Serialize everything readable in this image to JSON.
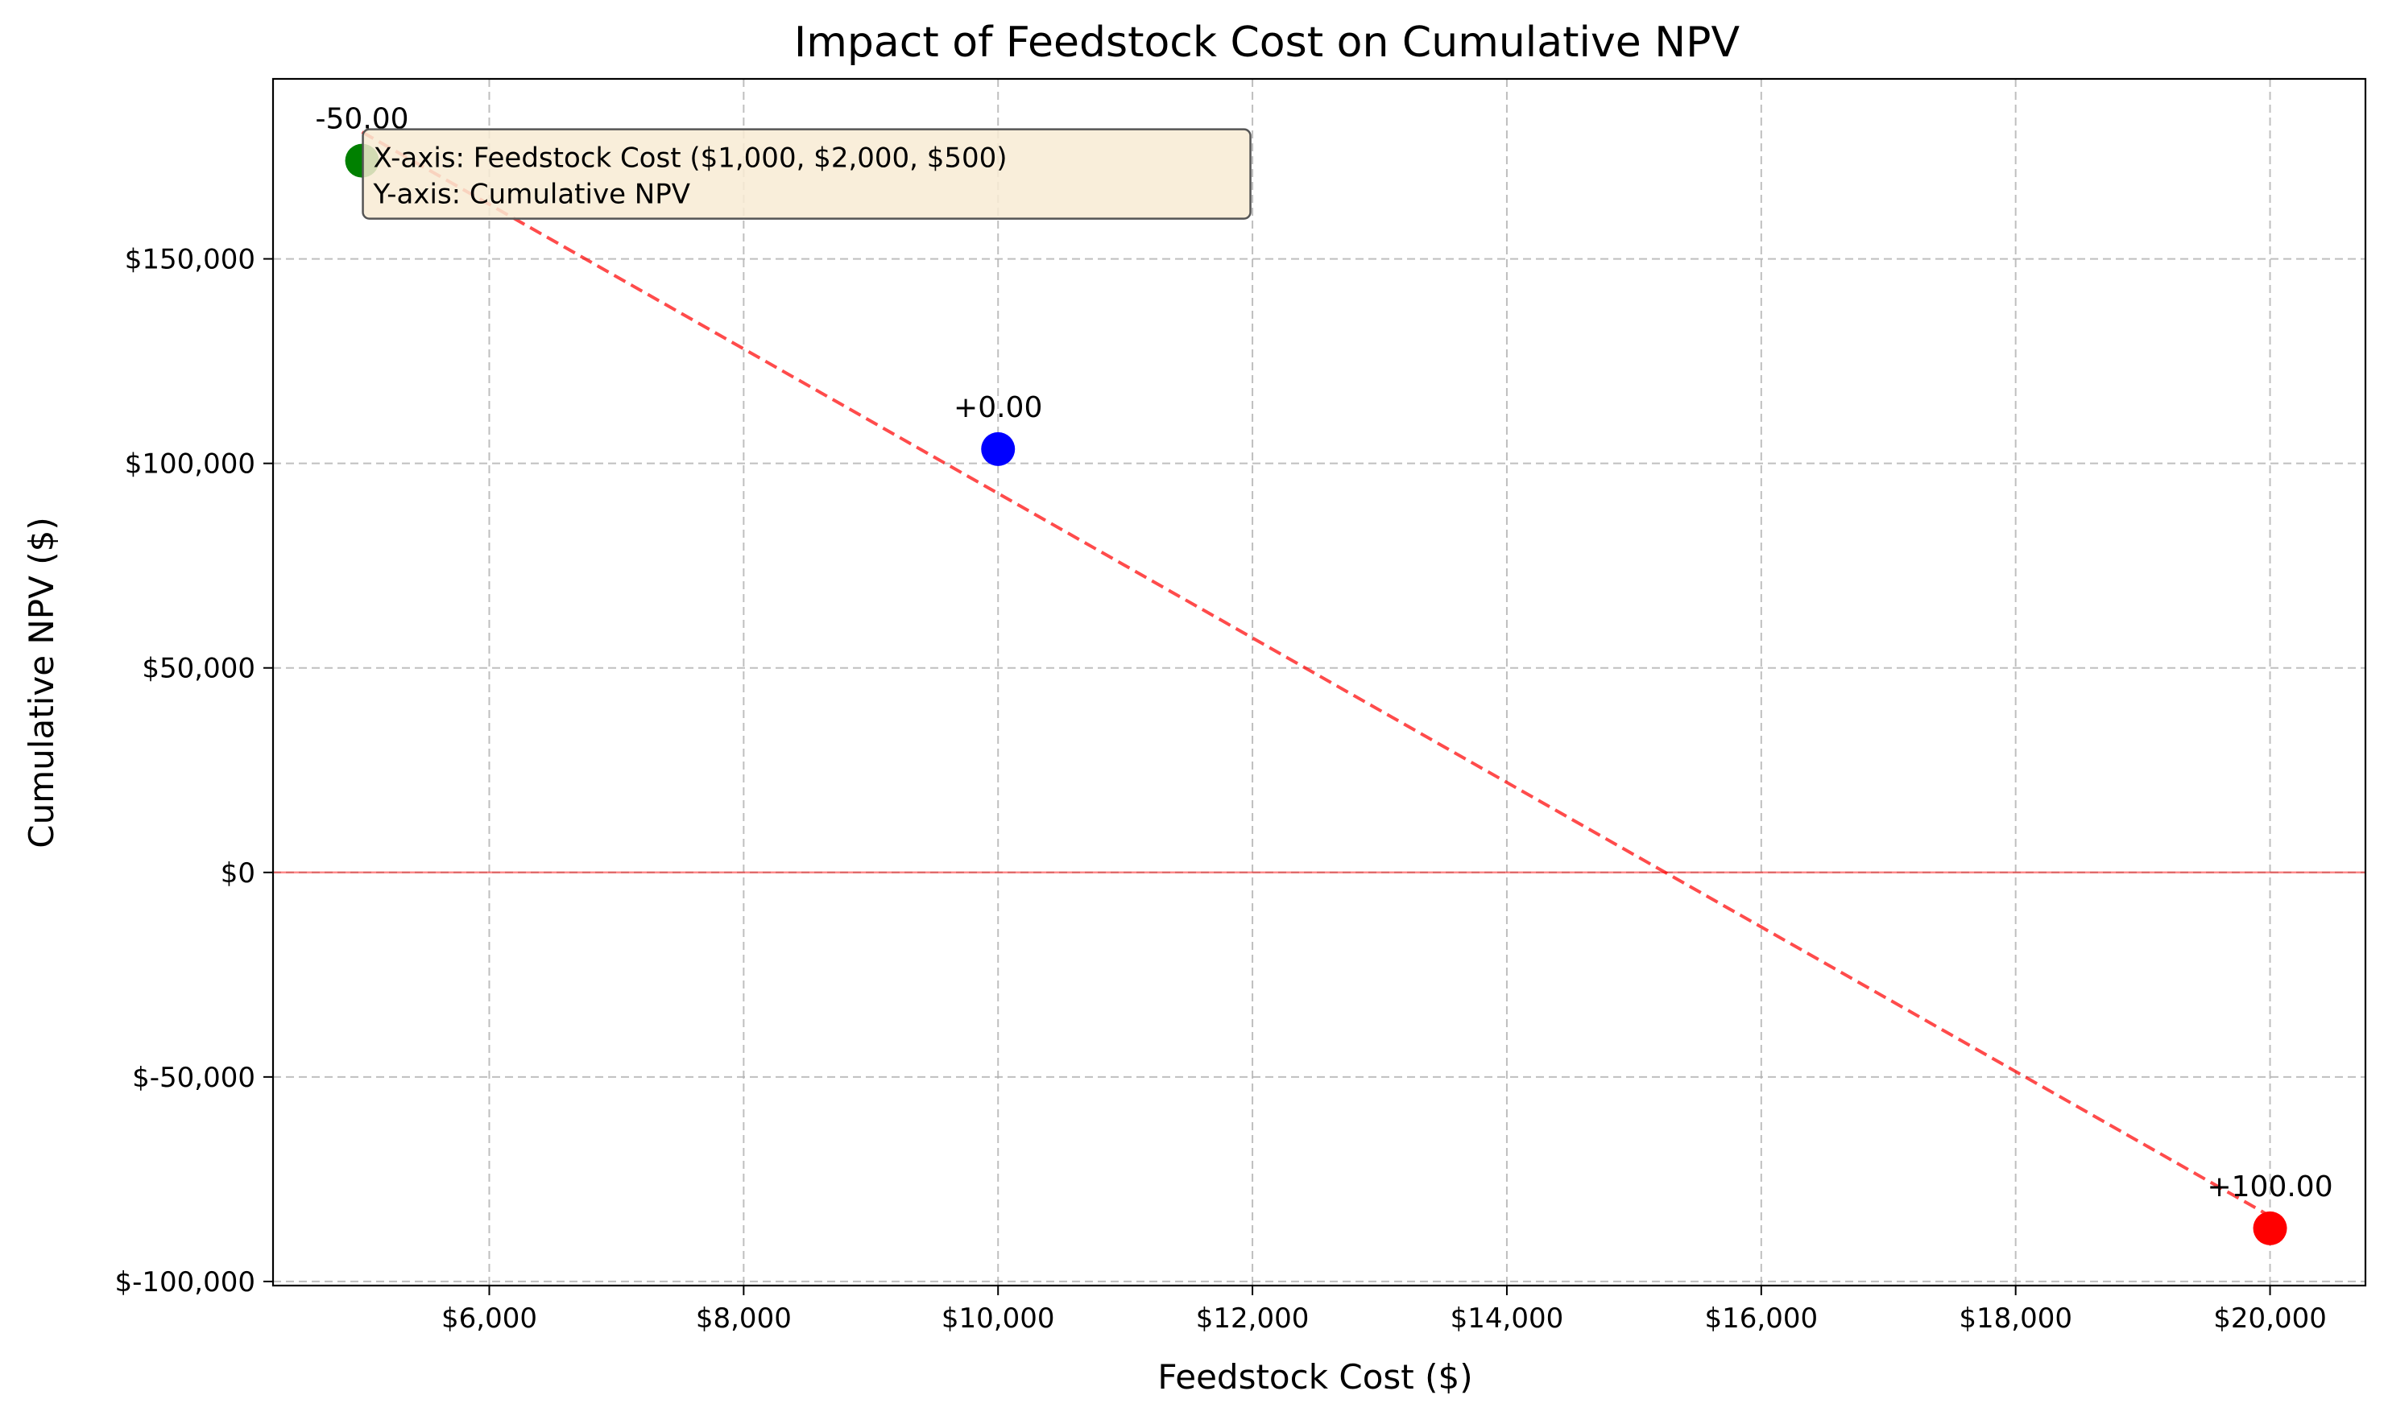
{
  "chart_data": {
    "type": "scatter",
    "title": "Impact of Feedstock Cost on Cumulative NPV",
    "xlabel": "Feedstock Cost ($)",
    "ylabel": "Cumulative NPV ($)",
    "xlim": [
      4300,
      20750
    ],
    "ylim": [
      -101000,
      194000
    ],
    "x_ticks": [
      6000,
      8000,
      10000,
      12000,
      14000,
      16000,
      18000,
      20000
    ],
    "x_tick_labels": [
      "$6,000",
      "$8,000",
      "$10,000",
      "$12,000",
      "$14,000",
      "$16,000",
      "$18,000",
      "$20,000"
    ],
    "y_ticks": [
      -100000,
      -50000,
      0,
      50000,
      100000,
      150000
    ],
    "y_tick_labels": [
      "$-100,000",
      "$-50,000",
      "$0",
      "$50,000",
      "$100,000",
      "$150,000"
    ],
    "grid": true,
    "points": [
      {
        "x": 5000,
        "y": 174000,
        "label": "-50.00",
        "color": "#008000"
      },
      {
        "x": 10000,
        "y": 103500,
        "label": "+0.00",
        "color": "#0000ff"
      },
      {
        "x": 20000,
        "y": -87000,
        "label": "+100.00",
        "color": "#ff0000"
      }
    ],
    "trend_line": {
      "x": [
        5000,
        20000
      ],
      "y": [
        181000,
        -84000
      ],
      "color": "#ff0000",
      "style": "dashed"
    },
    "reference_line": {
      "y": 0,
      "color": "#ff0000"
    },
    "annotation_box": {
      "lines": [
        "X-axis: Feedstock Cost ($1,000, $2,000, $500)",
        "Y-axis: Cumulative NPV"
      ],
      "background": "#f8ebd3"
    }
  }
}
